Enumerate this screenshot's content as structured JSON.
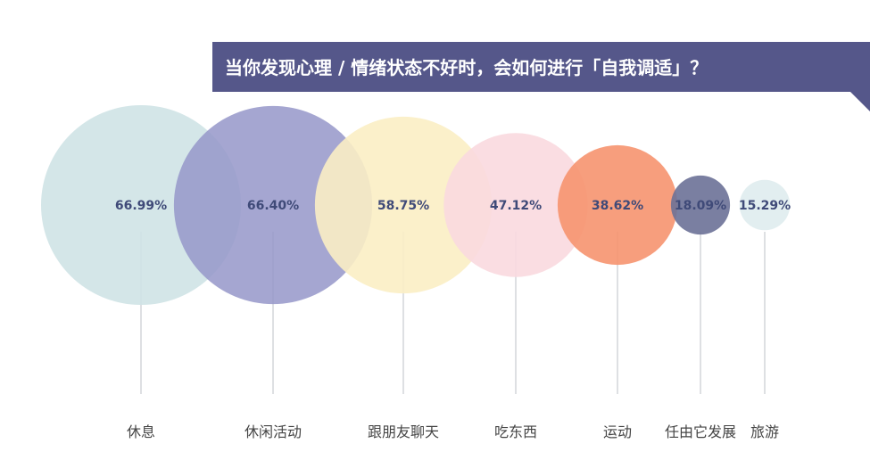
{
  "chart_data": {
    "type": "bubble",
    "title": "当你发现心理 / 情绪状态不好时，会如何进行「自我调适」？",
    "categories": [
      "休息",
      "休闲活动",
      "跟朋友聊天",
      "吃东西",
      "运动",
      "任由它发展",
      "旅游"
    ],
    "values": [
      66.99,
      66.4,
      58.75,
      47.12,
      38.62,
      18.09,
      15.29
    ],
    "value_labels": [
      "66.99%",
      "66.40%",
      "58.75%",
      "47.12%",
      "38.62%",
      "18.09%",
      "15.29%"
    ],
    "unit": "%",
    "colors": [
      "#cfe3e6",
      "#9597c9",
      "#fbeec4",
      "#f9d9df",
      "#f6936f",
      "#6c7197",
      "#dfecee"
    ],
    "title_bar_color": "#55578a",
    "label_color": "#3f4a78",
    "legend": false,
    "grid": false
  }
}
